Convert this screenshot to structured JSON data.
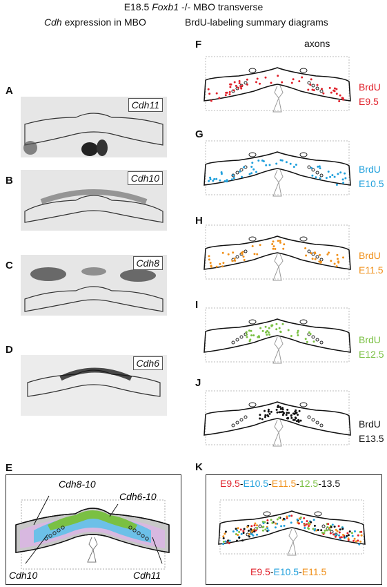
{
  "header": {
    "title_pre": "E18.5 ",
    "title_italic": "Foxb1",
    "title_post": " -/- MBO  transverse",
    "left_italic": "Cdh",
    "left_rest": " expression in MBO",
    "right": "BrdU-labeling summary diagrams"
  },
  "left_panels": [
    {
      "letter": "A",
      "gene": "Cdh11"
    },
    {
      "letter": "B",
      "gene": "Cdh10"
    },
    {
      "letter": "C",
      "gene": "Cdh8"
    },
    {
      "letter": "D",
      "gene": "Cdh6"
    }
  ],
  "panel_e": {
    "letter": "E",
    "labels": {
      "cdh8_10": "Cdh8-10",
      "cdh6_10": "Cdh6-10",
      "cdh10": "Cdh10",
      "cdh11": "Cdh11"
    }
  },
  "right_panels": [
    {
      "letter": "F",
      "line1": "BrdU",
      "line2": "E9.5",
      "color": "#e0202a"
    },
    {
      "letter": "G",
      "line1": "BrdU",
      "line2": "E10.5",
      "color": "#20a0dc"
    },
    {
      "letter": "H",
      "line1": "BrdU",
      "line2": "E11.5",
      "color": "#f0901a"
    },
    {
      "letter": "I",
      "line1": "BrdU",
      "line2": "E12.5",
      "color": "#7ac043"
    },
    {
      "letter": "J",
      "line1": "BrdU",
      "line2": "E13.5",
      "color": "#111111"
    }
  ],
  "axons_label": "axons",
  "panel_k": {
    "letter": "K",
    "top_legend": [
      {
        "text": "E9.5",
        "color": "#e0202a"
      },
      {
        "text": "-",
        "color": "#111111"
      },
      {
        "text": "E10.5",
        "color": "#20a0dc"
      },
      {
        "text": "-",
        "color": "#111111"
      },
      {
        "text": "E11.5",
        "color": "#f0901a"
      },
      {
        "text": "-",
        "color": "#111111"
      },
      {
        "text": "12.5",
        "color": "#7ac043"
      },
      {
        "text": "-13.5",
        "color": "#111111"
      }
    ],
    "bottom_legend": [
      {
        "text": "E9.5",
        "color": "#e0202a"
      },
      {
        "text": "-",
        "color": "#111111"
      },
      {
        "text": "E10.5",
        "color": "#20a0dc"
      },
      {
        "text": "-",
        "color": "#111111"
      },
      {
        "text": "E11.5",
        "color": "#f0901a"
      }
    ]
  }
}
